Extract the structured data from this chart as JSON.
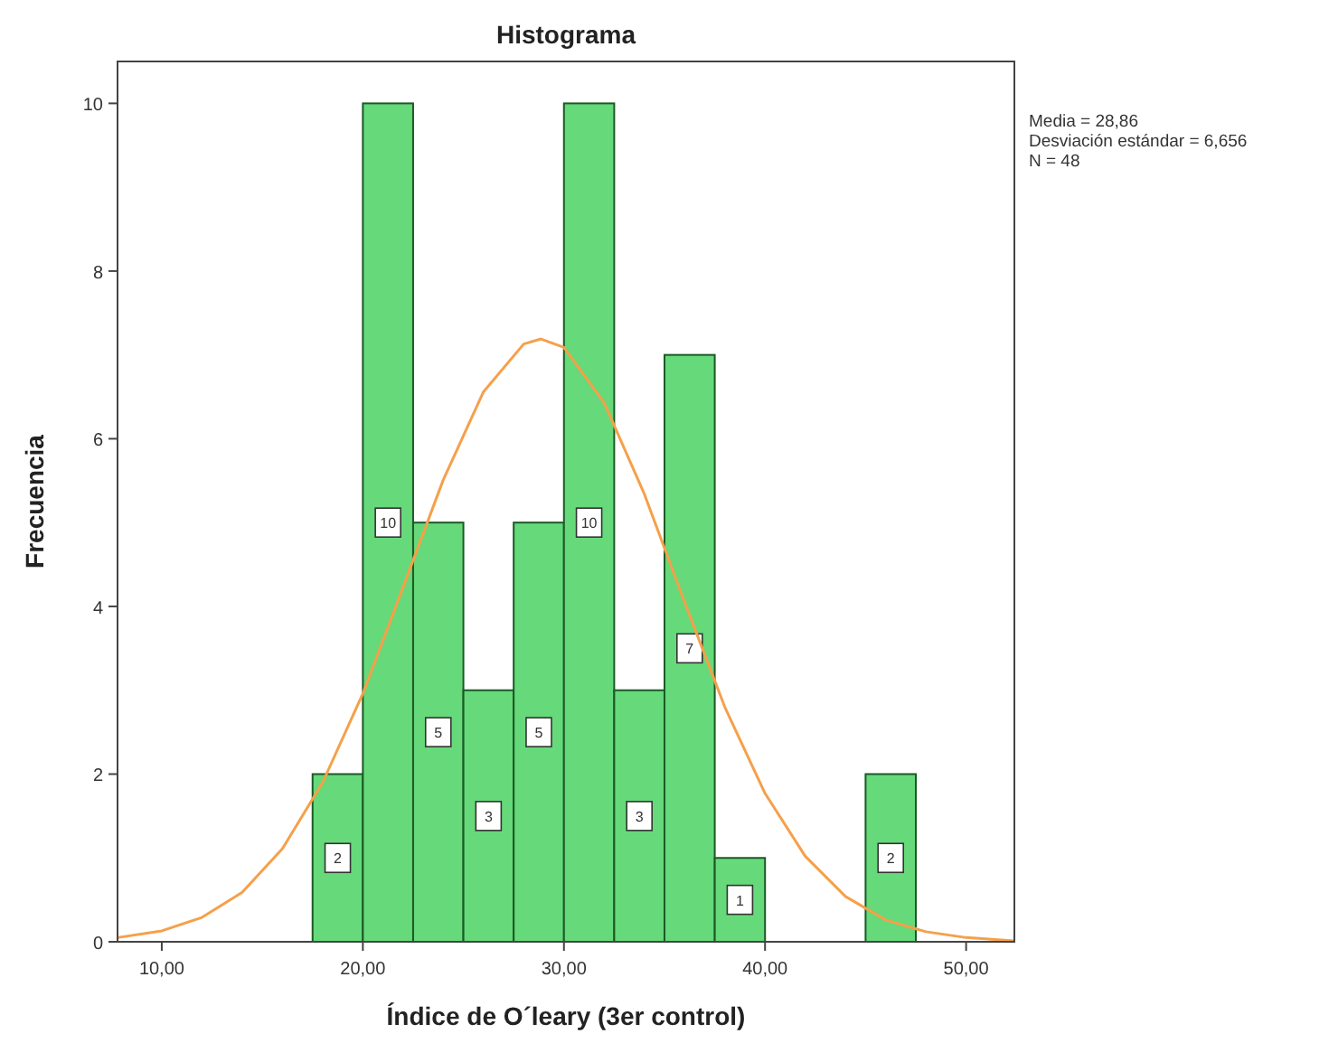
{
  "chart_data": {
    "type": "histogram",
    "title": "Histograma",
    "xlabel": "Índice de O´leary (3er control)",
    "ylabel": "Frecuencia",
    "bins": [
      17.5,
      20,
      22.5,
      25,
      27.5,
      30,
      32.5,
      35,
      37.5,
      40,
      42.5,
      45,
      47.5
    ],
    "values": [
      2,
      10,
      5,
      3,
      5,
      10,
      3,
      7,
      1,
      0,
      0,
      2
    ],
    "value_labels": [
      "2",
      "10",
      "5",
      "3",
      "5",
      "10",
      "3",
      "7",
      "1",
      null,
      null,
      "2"
    ],
    "color": "#66d97a",
    "series": [
      {
        "type": "line",
        "color": "#f5a04a",
        "x": [
          7.8,
          10,
          12,
          14,
          16,
          18,
          20,
          22,
          24,
          26,
          28,
          28.86,
          30,
          32,
          34,
          36,
          38,
          40,
          42,
          44,
          46,
          48,
          50,
          52.4
        ],
        "values": [
          0.05,
          0.13,
          0.29,
          0.59,
          1.11,
          1.9,
          2.96,
          4.23,
          5.51,
          6.56,
          7.13,
          7.19,
          7.09,
          6.43,
          5.34,
          4.05,
          2.8,
          1.77,
          1.02,
          0.54,
          0.26,
          0.12,
          0.05,
          0.01
        ]
      }
    ],
    "xlim": [
      7.8,
      52.4
    ],
    "ylim": [
      0,
      10.5
    ],
    "xticks": [
      {
        "value": 10,
        "label": "10,00"
      },
      {
        "value": 20,
        "label": "20,00"
      },
      {
        "value": 30,
        "label": "30,00"
      },
      {
        "value": 40,
        "label": "40,00"
      },
      {
        "value": 50,
        "label": "50,00"
      }
    ],
    "yticks": [
      0,
      2,
      4,
      6,
      8,
      10
    ],
    "annotations": [
      "Media = 28,86",
      "Desviación estándar = 6,656",
      "N = 48"
    ]
  }
}
